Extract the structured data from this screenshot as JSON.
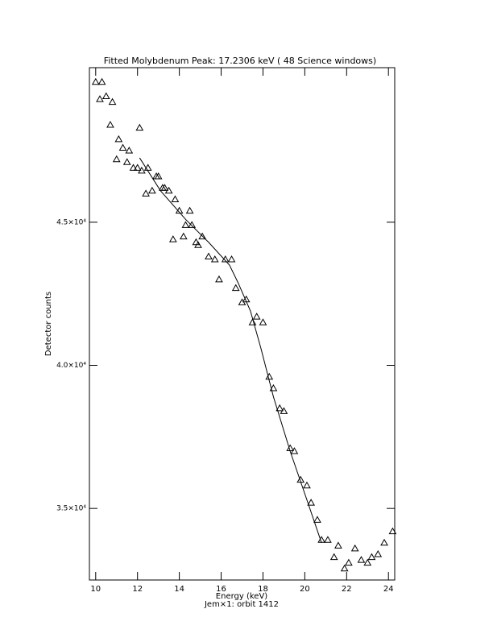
{
  "chart_data": {
    "type": "scatter",
    "title": "Fitted Molybdenum Peak:      17.2306 keV (      48 Science windows)",
    "x_label": "Energy (keV)",
    "subtitle": "Jem×1: orbit 1412",
    "y_label": "Detector counts",
    "xlim": [
      9.7,
      24.3
    ],
    "ylim": [
      32500,
      50400
    ],
    "xticks": [
      10,
      12,
      14,
      16,
      18,
      20,
      22,
      24
    ],
    "yticks": [
      {
        "value": 35000,
        "label": "3.5×10⁴"
      },
      {
        "value": 40000,
        "label": "4.0×10⁴"
      },
      {
        "value": 45000,
        "label": "4.5×10⁴"
      }
    ],
    "series": [
      {
        "type": "scatter",
        "color": "#000000",
        "x": [
          10.0,
          10.3,
          10.2,
          10.5,
          10.8,
          10.7,
          11.1,
          11.0,
          11.3,
          11.6,
          11.5,
          11.8,
          12.0,
          12.1,
          12.2,
          12.4,
          12.5,
          12.7,
          12.9,
          13.0,
          13.2,
          13.3,
          13.5,
          13.7,
          13.8,
          14.0,
          14.2,
          14.3,
          14.5,
          14.6,
          14.8,
          14.9,
          15.1,
          15.4,
          15.7,
          15.9,
          16.2,
          16.5,
          16.7,
          17.0,
          17.2,
          17.5,
          17.7,
          18.0,
          18.3,
          18.5,
          18.8,
          19.0,
          19.3,
          19.5,
          19.8,
          20.1,
          20.3,
          20.6,
          20.8,
          21.1,
          21.4,
          21.6,
          21.9,
          22.1,
          22.4,
          22.7,
          23.0,
          23.2,
          23.5,
          23.8,
          24.2
        ],
        "values": [
          49900,
          49900,
          49300,
          49400,
          49200,
          48400,
          47900,
          47200,
          47600,
          47500,
          47100,
          46900,
          46900,
          48300,
          46800,
          46000,
          46900,
          46100,
          46600,
          46600,
          46200,
          46200,
          46100,
          44400,
          45800,
          45400,
          44500,
          44900,
          45400,
          44900,
          44300,
          44200,
          44500,
          43800,
          43700,
          43000,
          43700,
          43700,
          42700,
          42200,
          42300,
          41500,
          41700,
          41500,
          39600,
          39200,
          38500,
          38400,
          37100,
          37000,
          36000,
          35800,
          35200,
          34600,
          33900,
          33900,
          33300,
          33700,
          32900,
          33100,
          33600,
          33200,
          33100,
          33300,
          33400,
          33800,
          34200
        ]
      },
      {
        "type": "line",
        "color": "#000000",
        "x": [
          12.1,
          13.1,
          14.3,
          15.4,
          16.4,
          16.8,
          17.4,
          17.9,
          18.5,
          19.3,
          20.1,
          20.8
        ],
        "values": [
          47250,
          46100,
          45100,
          44300,
          43500,
          42900,
          41900,
          40600,
          38900,
          37000,
          35300,
          33800
        ]
      }
    ]
  }
}
